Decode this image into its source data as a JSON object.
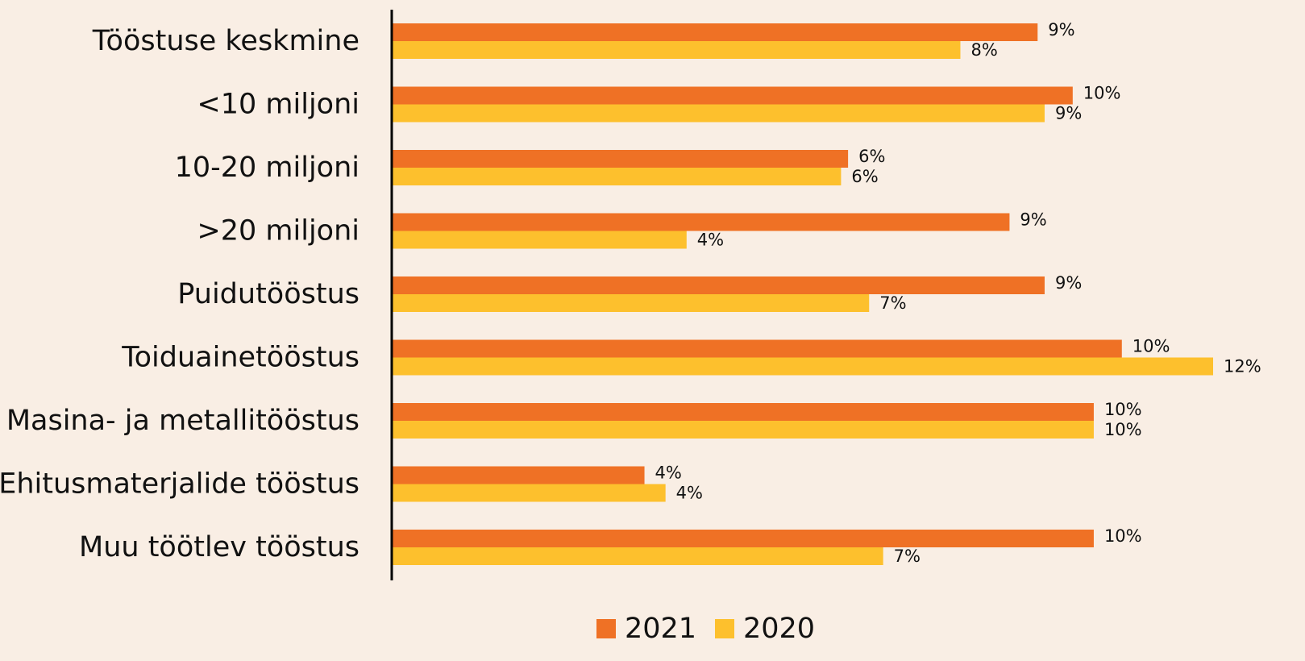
{
  "chart_data": {
    "type": "bar",
    "orientation": "horizontal",
    "categories": [
      "Tööstuse keskmine",
      "<10 miljoni",
      "10-20 miljoni",
      ">20 miljoni",
      "Puidutööstus",
      "Toiduainetööstus",
      "Masina- ja metallitööstus",
      "Ehitusmaterjalide tööstus",
      "Muu töötlev tööstus"
    ],
    "series": [
      {
        "name": "2021",
        "color": "#ef7125",
        "values": [
          9.2,
          9.7,
          6.5,
          8.8,
          9.3,
          10.4,
          10.0,
          3.6,
          10.0
        ],
        "value_labels": [
          "9%",
          "10%",
          "6%",
          "9%",
          "9%",
          "10%",
          "10%",
          "4%",
          "10%"
        ]
      },
      {
        "name": "2020",
        "color": "#fdc02d",
        "values": [
          8.1,
          9.3,
          6.4,
          4.2,
          6.8,
          11.7,
          10.0,
          3.9,
          7.0
        ],
        "value_labels": [
          "8%",
          "9%",
          "6%",
          "4%",
          "7%",
          "12%",
          "10%",
          "4%",
          "7%"
        ]
      }
    ],
    "legend": "bottom"
  }
}
